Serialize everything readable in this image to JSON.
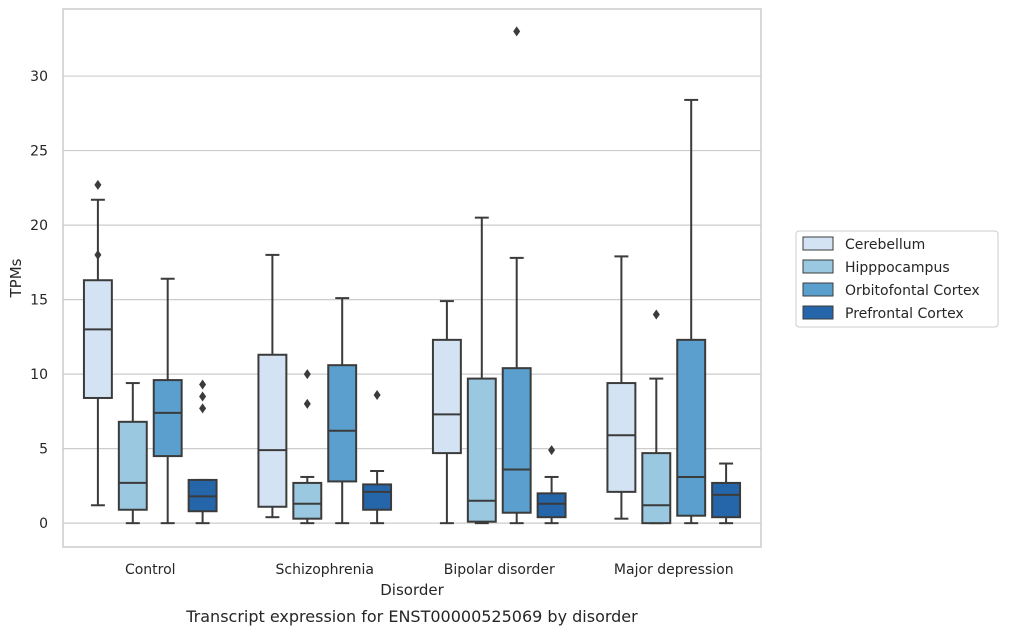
{
  "caption": "Transcript expression for ENST00000525069 by disorder",
  "chart_data": {
    "type": "box",
    "xlabel": "Disorder",
    "ylabel": "TPMs",
    "ylim": [
      -1.6,
      34.5
    ],
    "yticks": [
      0,
      5,
      10,
      15,
      20,
      25,
      30
    ],
    "categories": [
      "Control",
      "Schizophrenia",
      "Bipolar disorder",
      "Major depression"
    ],
    "grid": "horizontal",
    "legend_position": "right",
    "series": [
      {
        "name": "Cerebellum",
        "color": "#d3e3f3",
        "boxes": [
          {
            "q1": 8.4,
            "median": 13.0,
            "q3": 16.3,
            "whislo": 1.2,
            "whishi": 21.7,
            "fliers": [
              22.7,
              18.0
            ]
          },
          {
            "q1": 1.1,
            "median": 4.9,
            "q3": 11.3,
            "whislo": 0.4,
            "whishi": 18.0,
            "fliers": []
          },
          {
            "q1": 4.7,
            "median": 7.3,
            "q3": 12.3,
            "whislo": 0.0,
            "whishi": 14.9,
            "fliers": []
          },
          {
            "q1": 2.1,
            "median": 5.9,
            "q3": 9.4,
            "whislo": 0.3,
            "whishi": 17.9,
            "fliers": []
          }
        ]
      },
      {
        "name": "Hipppocampus",
        "color": "#9ac8e0",
        "boxes": [
          {
            "q1": 0.9,
            "median": 2.7,
            "q3": 6.8,
            "whislo": 0.0,
            "whishi": 9.4,
            "fliers": []
          },
          {
            "q1": 0.3,
            "median": 1.3,
            "q3": 2.7,
            "whislo": 0.0,
            "whishi": 3.1,
            "fliers": [
              10.0,
              8.0
            ]
          },
          {
            "q1": 0.1,
            "median": 1.5,
            "q3": 9.7,
            "whislo": 0.0,
            "whishi": 20.5,
            "fliers": []
          },
          {
            "q1": 0.0,
            "median": 1.2,
            "q3": 4.7,
            "whislo": 0.0,
            "whishi": 9.7,
            "fliers": [
              14.0
            ]
          }
        ]
      },
      {
        "name": "Orbitofontal Cortex",
        "color": "#5a9fce",
        "boxes": [
          {
            "q1": 4.5,
            "median": 7.4,
            "q3": 9.6,
            "whislo": 0.0,
            "whishi": 16.4,
            "fliers": []
          },
          {
            "q1": 2.8,
            "median": 6.2,
            "q3": 10.6,
            "whislo": 0.0,
            "whishi": 15.1,
            "fliers": []
          },
          {
            "q1": 0.7,
            "median": 3.6,
            "q3": 10.4,
            "whislo": 0.0,
            "whishi": 17.8,
            "fliers": [
              33.0
            ]
          },
          {
            "q1": 0.5,
            "median": 3.1,
            "q3": 12.3,
            "whislo": 0.0,
            "whishi": 28.4,
            "fliers": []
          }
        ]
      },
      {
        "name": "Prefrontal Cortex",
        "color": "#2565a9",
        "boxes": [
          {
            "q1": 0.8,
            "median": 1.8,
            "q3": 2.9,
            "whislo": 0.0,
            "whishi": 2.9,
            "fliers": [
              9.3,
              8.5,
              7.7
            ]
          },
          {
            "q1": 0.9,
            "median": 2.1,
            "q3": 2.6,
            "whislo": 0.0,
            "whishi": 3.5,
            "fliers": [
              8.6
            ]
          },
          {
            "q1": 0.4,
            "median": 1.3,
            "q3": 2.0,
            "whislo": 0.0,
            "whishi": 3.1,
            "fliers": [
              4.9
            ]
          },
          {
            "q1": 0.4,
            "median": 1.9,
            "q3": 2.7,
            "whislo": 0.0,
            "whishi": 4.0,
            "fliers": []
          }
        ]
      }
    ]
  }
}
